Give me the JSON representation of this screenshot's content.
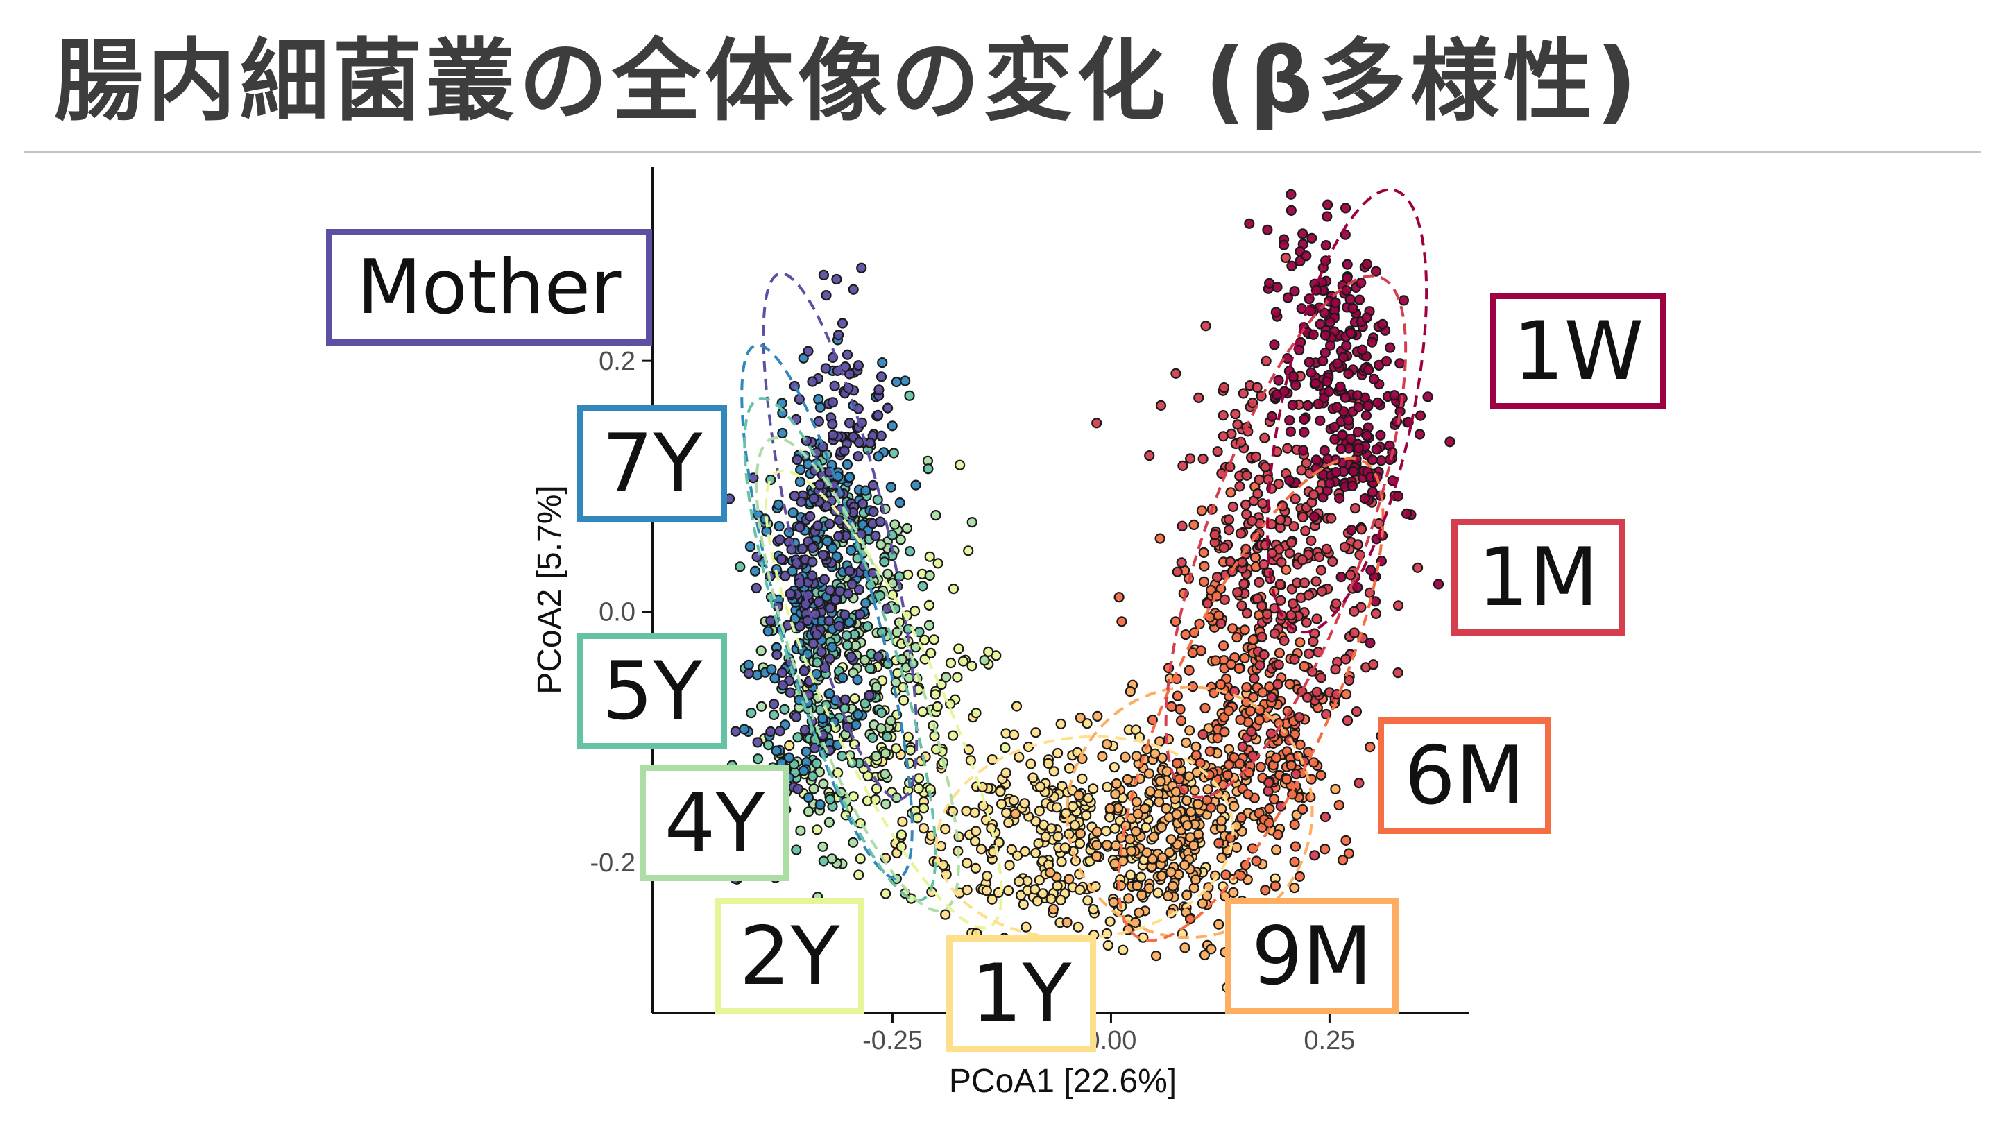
{
  "slide": {
    "title": "腸内細菌叢の全体像の変化 (β多様性)"
  },
  "chart_data": {
    "type": "scatter",
    "title": "",
    "xlabel": "PCoA1 [22.6%]",
    "ylabel": "PCoA2 [5.7%]",
    "xlim": [
      -0.525,
      0.41
    ],
    "ylim": [
      -0.32,
      0.355
    ],
    "x_ticks": [
      {
        "value": -0.25,
        "label": "-0.25"
      },
      {
        "value": 0.0,
        "label": "0.00"
      },
      {
        "value": 0.25,
        "label": "0.25"
      }
    ],
    "y_ticks": [
      {
        "value": -0.2,
        "label": "-0.2"
      },
      {
        "value": 0.0,
        "label": "0.0"
      },
      {
        "value": 0.2,
        "label": "0.2"
      }
    ],
    "grid": false,
    "legend": "group labels placed around the point cloud",
    "series": [
      {
        "name": "Mother",
        "color": "#5e4fa2",
        "center": [
          -0.33,
          0.05
        ],
        "spread": [
          0.03,
          0.095
        ],
        "ellipse": {
          "center": [
            -0.31,
            0.06
          ],
          "rx": 0.055,
          "ry": 0.215,
          "angle_deg": 13
        }
      },
      {
        "name": "7Y",
        "color": "#3288bd",
        "center": [
          -0.34,
          0.02
        ],
        "spread": [
          0.035,
          0.09
        ],
        "ellipse": {
          "center": [
            -0.325,
            0.0
          ],
          "rx": 0.055,
          "ry": 0.22,
          "angle_deg": 15
        }
      },
      {
        "name": "5Y",
        "color": "#66c2a5",
        "center": [
          -0.32,
          -0.02
        ],
        "spread": [
          0.04,
          0.09
        ],
        "ellipse": {
          "center": [
            -0.31,
            -0.03
          ],
          "rx": 0.06,
          "ry": 0.21,
          "angle_deg": 18
        }
      },
      {
        "name": "4Y",
        "color": "#abdda4",
        "center": [
          -0.3,
          -0.05
        ],
        "spread": [
          0.045,
          0.08
        ],
        "ellipse": {
          "center": [
            -0.29,
            -0.05
          ],
          "rx": 0.065,
          "ry": 0.2,
          "angle_deg": 20
        }
      },
      {
        "name": "2Y",
        "color": "#e6f598",
        "center": [
          -0.25,
          -0.1
        ],
        "spread": [
          0.05,
          0.07
        ],
        "ellipse": {
          "center": [
            -0.26,
            -0.07
          ],
          "rx": 0.065,
          "ry": 0.2,
          "angle_deg": 25
        }
      },
      {
        "name": "1Y",
        "color": "#fee08b",
        "center": [
          -0.06,
          -0.18
        ],
        "spread": [
          0.09,
          0.04
        ],
        "ellipse": {
          "center": [
            -0.03,
            -0.18
          ],
          "rx": 0.17,
          "ry": 0.08,
          "angle_deg": 5
        }
      },
      {
        "name": "9M",
        "color": "#fdae61",
        "center": [
          0.08,
          -0.17
        ],
        "spread": [
          0.06,
          0.045
        ],
        "ellipse": {
          "center": [
            0.09,
            -0.16
          ],
          "rx": 0.14,
          "ry": 0.1,
          "angle_deg": -15
        }
      },
      {
        "name": "6M",
        "color": "#f46d43",
        "center": [
          0.16,
          -0.08
        ],
        "spread": [
          0.04,
          0.08
        ],
        "ellipse": {
          "center": [
            0.16,
            -0.07
          ],
          "rx": 0.09,
          "ry": 0.21,
          "angle_deg": -25
        }
      },
      {
        "name": "1M",
        "color": "#d53e4f",
        "center": [
          0.2,
          0.05
        ],
        "spread": [
          0.05,
          0.08
        ],
        "ellipse": {
          "center": [
            0.2,
            0.06
          ],
          "rx": 0.09,
          "ry": 0.22,
          "angle_deg": -20
        }
      },
      {
        "name": "1W",
        "color": "#9e0142",
        "center": [
          0.26,
          0.18
        ],
        "spread": [
          0.035,
          0.07
        ],
        "ellipse": {
          "center": [
            0.27,
            0.16
          ],
          "rx": 0.075,
          "ry": 0.18,
          "angle_deg": -12
        }
      }
    ],
    "label_boxes": [
      {
        "text": "Mother",
        "color": "#5e4fa2"
      },
      {
        "text": "7Y",
        "color": "#3288bd"
      },
      {
        "text": "5Y",
        "color": "#66c2a5"
      },
      {
        "text": "4Y",
        "color": "#abdda4"
      },
      {
        "text": "2Y",
        "color": "#e6f598"
      },
      {
        "text": "1Y",
        "color": "#fee08b"
      },
      {
        "text": "9M",
        "color": "#fdae61"
      },
      {
        "text": "6M",
        "color": "#f46d43"
      },
      {
        "text": "1M",
        "color": "#d53e4f"
      },
      {
        "text": "1W",
        "color": "#9e0142"
      }
    ]
  }
}
